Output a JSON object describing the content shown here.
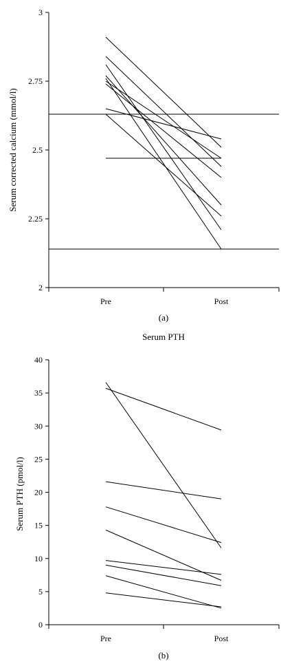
{
  "chart_data": [
    {
      "type": "line",
      "panel_label": "(a)",
      "title": "",
      "xlabel": "",
      "ylabel": "Serum corrected calcium (mmol/l)",
      "categories": [
        "Pre",
        "Post"
      ],
      "ylim": [
        2,
        3
      ],
      "yticks": [
        "2",
        "2.25",
        "2.5",
        "2.75",
        "3"
      ],
      "series": [
        {
          "values": [
            2.91,
            2.51
          ]
        },
        {
          "values": [
            2.84,
            2.44
          ]
        },
        {
          "values": [
            2.81,
            2.21
          ]
        },
        {
          "values": [
            2.77,
            2.3
          ]
        },
        {
          "values": [
            2.76,
            2.14
          ]
        },
        {
          "values": [
            2.75,
            2.47
          ]
        },
        {
          "values": [
            2.74,
            2.4
          ]
        },
        {
          "values": [
            2.65,
            2.54
          ]
        },
        {
          "values": [
            2.63,
            2.26
          ]
        },
        {
          "values": [
            2.47,
            2.47
          ]
        }
      ],
      "reference_lines": [
        2.63,
        2.14
      ]
    },
    {
      "type": "line",
      "panel_label": "(b)",
      "title": "Serum PTH",
      "xlabel": "",
      "ylabel": "Serum PTH (pmol/l)",
      "categories": [
        "Pre",
        "Post"
      ],
      "ylim": [
        0,
        40
      ],
      "yticks": [
        "0",
        "5",
        "10",
        "15",
        "20",
        "25",
        "30",
        "35",
        "40"
      ],
      "series": [
        {
          "values": [
            36.6,
            11.6
          ]
        },
        {
          "values": [
            35.7,
            29.4
          ]
        },
        {
          "values": [
            21.6,
            19.0
          ]
        },
        {
          "values": [
            17.8,
            12.4
          ]
        },
        {
          "values": [
            14.3,
            6.7
          ]
        },
        {
          "values": [
            9.7,
            7.6
          ]
        },
        {
          "values": [
            9.0,
            5.9
          ]
        },
        {
          "values": [
            7.4,
            2.5
          ]
        },
        {
          "values": [
            4.8,
            2.7
          ]
        }
      ],
      "reference_lines": []
    }
  ]
}
